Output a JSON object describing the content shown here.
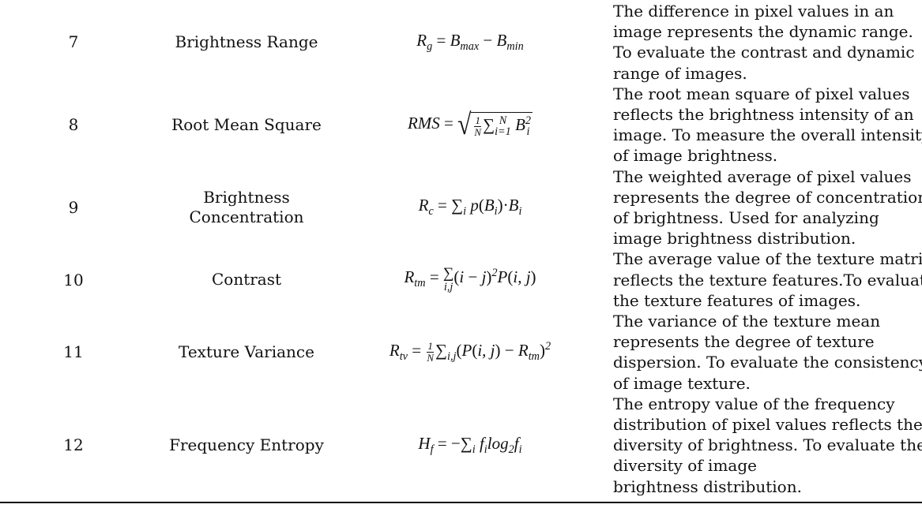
{
  "rows": [
    {
      "num": "7",
      "name": [
        "Brightness Range"
      ],
      "formula": [
        {
          "t": "i",
          "v": "R"
        },
        {
          "t": "sub",
          "v": "g"
        },
        {
          "t": "r",
          "v": " = "
        },
        {
          "t": "i",
          "v": "B"
        },
        {
          "t": "sub",
          "v": "max"
        },
        {
          "t": "r",
          "v": " − "
        },
        {
          "t": "i",
          "v": "B"
        },
        {
          "t": "sub",
          "v": "min"
        }
      ],
      "desc": [
        "The difference in pixel values in an",
        "image represents the dynamic range.",
        "To evaluate the contrast and dynamic",
        "range of images."
      ]
    },
    {
      "num": "8",
      "name": [
        "Root Mean Square"
      ],
      "formula": [
        {
          "t": "i",
          "v": "RMS"
        },
        {
          "t": "r",
          "v": " = "
        },
        {
          "t": "sqrt",
          "c": [
            {
              "t": "frac",
              "n": "1",
              "d": "N"
            },
            {
              "t": "r",
              "v": "∑"
            },
            {
              "t": "subsup",
              "sub": "i=1",
              "sup": "N"
            },
            {
              "t": "r",
              "v": " "
            },
            {
              "t": "i",
              "v": "B"
            },
            {
              "t": "subsup",
              "sub": "i",
              "sup": "2"
            }
          ]
        }
      ],
      "desc": [
        "The root mean square of pixel values",
        "reflects the brightness intensity of an",
        "image. To measure the overall intensity",
        "of image brightness."
      ]
    },
    {
      "num": "9",
      "name": [
        "Brightness",
        "Concentration"
      ],
      "formula": [
        {
          "t": "i",
          "v": "R"
        },
        {
          "t": "sub",
          "v": "c"
        },
        {
          "t": "r",
          "v": " = ∑"
        },
        {
          "t": "sub",
          "v": "i"
        },
        {
          "t": "r",
          "v": " "
        },
        {
          "t": "i",
          "v": "p"
        },
        {
          "t": "r",
          "v": "("
        },
        {
          "t": "i",
          "v": "B"
        },
        {
          "t": "sub",
          "v": "i"
        },
        {
          "t": "r",
          "v": ")·"
        },
        {
          "t": "i",
          "v": "B"
        },
        {
          "t": "sub",
          "v": "i"
        }
      ],
      "desc": [
        "The weighted average of pixel values",
        "represents the degree of concentration",
        "of brightness. Used for analyzing",
        "image brightness distribution."
      ]
    },
    {
      "num": "10",
      "name": [
        "Contrast"
      ],
      "formula": [
        {
          "t": "i",
          "v": "R"
        },
        {
          "t": "sub",
          "v": "tm"
        },
        {
          "t": "r",
          "v": " = "
        },
        {
          "t": "under",
          "base": "∑",
          "u": "i,j"
        },
        {
          "t": "r",
          "v": "("
        },
        {
          "t": "i",
          "v": "i"
        },
        {
          "t": "r",
          "v": " − "
        },
        {
          "t": "i",
          "v": "j"
        },
        {
          "t": "r",
          "v": ")"
        },
        {
          "t": "sup",
          "v": "2"
        },
        {
          "t": "i",
          "v": "P"
        },
        {
          "t": "r",
          "v": "("
        },
        {
          "t": "i",
          "v": "i, j"
        },
        {
          "t": "r",
          "v": ")"
        }
      ],
      "desc": [
        "The average value of the texture matrix",
        "reflects the texture features.To evaluate",
        "the texture features of images."
      ]
    },
    {
      "num": "11",
      "name": [
        "Texture Variance"
      ],
      "formula": [
        {
          "t": "i",
          "v": "R"
        },
        {
          "t": "sub",
          "v": "tv"
        },
        {
          "t": "r",
          "v": " = "
        },
        {
          "t": "frac",
          "n": "1",
          "d": "N"
        },
        {
          "t": "r",
          "v": "∑"
        },
        {
          "t": "sub",
          "v": "i,j"
        },
        {
          "t": "r",
          "v": "("
        },
        {
          "t": "i",
          "v": "P"
        },
        {
          "t": "r",
          "v": "("
        },
        {
          "t": "i",
          "v": "i, j"
        },
        {
          "t": "r",
          "v": ") − "
        },
        {
          "t": "i",
          "v": "R"
        },
        {
          "t": "sub",
          "v": "tm"
        },
        {
          "t": "r",
          "v": ")"
        },
        {
          "t": "sup",
          "v": "2"
        }
      ],
      "desc": [
        "The variance of the texture mean",
        "represents the degree of texture",
        "dispersion. To evaluate the consistency",
        "of image texture."
      ]
    },
    {
      "num": "12",
      "name": [
        "Frequency Entropy"
      ],
      "formula": [
        {
          "t": "i",
          "v": "H"
        },
        {
          "t": "sub",
          "v": "f"
        },
        {
          "t": "r",
          "v": " = −∑"
        },
        {
          "t": "sub",
          "v": "i"
        },
        {
          "t": "r",
          "v": " "
        },
        {
          "t": "i",
          "v": "f"
        },
        {
          "t": "sub",
          "v": "i"
        },
        {
          "t": "i",
          "v": "log"
        },
        {
          "t": "sub",
          "v": "2"
        },
        {
          "t": "i",
          "v": "f"
        },
        {
          "t": "sub",
          "v": "i"
        }
      ],
      "desc": [
        "The entropy value of the frequency",
        "distribution of pixel values reflects the",
        "diversity of brightness. To evaluate the",
        "diversity of image",
        "brightness distribution."
      ]
    }
  ]
}
